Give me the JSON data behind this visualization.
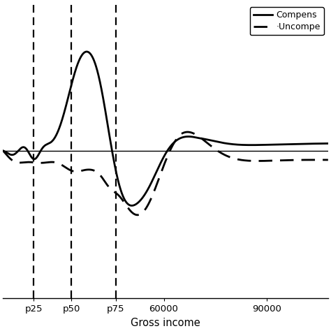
{
  "title": "",
  "xlabel": "Gross income",
  "ylabel": "",
  "legend_compensated": "Compens",
  "legend_uncompensated": "·Uncompe",
  "xlim": [
    13000,
    108000
  ],
  "ylim": [
    -0.38,
    0.38
  ],
  "p25": 22000,
  "p50": 33000,
  "p75": 46000,
  "background_color": "#ffffff",
  "line_color": "#000000"
}
